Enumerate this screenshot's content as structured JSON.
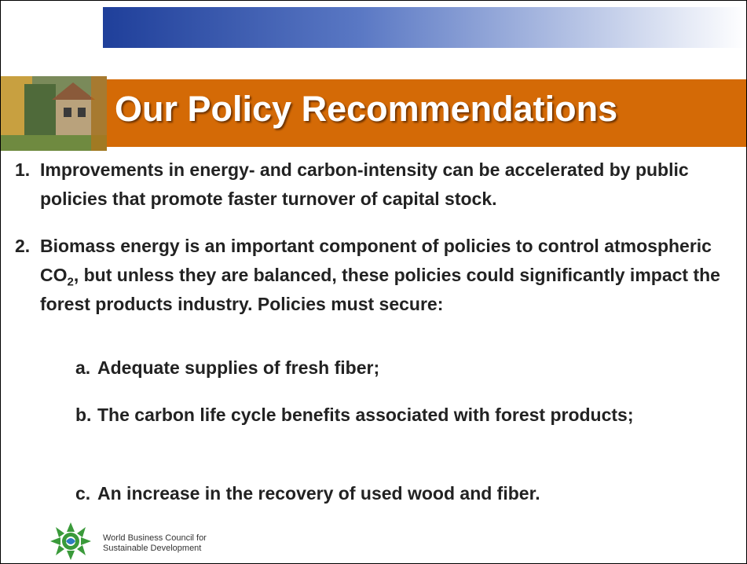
{
  "title": "Our Policy Recommendations",
  "items": [
    {
      "marker": "1.",
      "text": "Improvements in energy- and carbon-intensity can be accelerated by public policies that promote faster turnover of capital stock."
    },
    {
      "marker": "2.",
      "text_parts": [
        "Biomass energy is an important component of policies to control atmospheric CO",
        "2",
        ", but unless they are balanced, these policies could significantly impact the forest products industry.  Policies must secure:"
      ],
      "subitems": [
        {
          "marker": "a.",
          "text": "Adequate supplies of fresh fiber;"
        },
        {
          "marker": "b.",
          "text": "The carbon life cycle benefits associated with forest products;"
        },
        {
          "marker": "c.",
          "text": "An increase in the recovery of used wood and fiber."
        }
      ]
    }
  ],
  "footer": {
    "logo_lines": [
      "World Business Council for",
      "Sustainable Development"
    ]
  }
}
